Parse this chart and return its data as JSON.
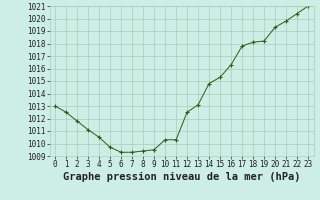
{
  "hours": [
    0,
    1,
    2,
    3,
    4,
    5,
    6,
    7,
    8,
    9,
    10,
    11,
    12,
    13,
    14,
    15,
    16,
    17,
    18,
    19,
    20,
    21,
    22,
    23
  ],
  "pressure": [
    1013.0,
    1012.5,
    1011.8,
    1011.1,
    1010.5,
    1009.7,
    1009.3,
    1009.3,
    1009.4,
    1009.5,
    1010.3,
    1010.3,
    1012.5,
    1013.1,
    1014.8,
    1015.3,
    1016.3,
    1017.8,
    1018.1,
    1018.2,
    1019.3,
    1019.8,
    1020.4,
    1021.0
  ],
  "line_color": "#2d5a1b",
  "marker_color": "#2d5a1b",
  "bg_color": "#cceee4",
  "grid_color": "#aaccbb",
  "xlabel": "Graphe pression niveau de la mer (hPa)",
  "ylim_min": 1009,
  "ylim_max": 1021,
  "ytick_step": 1,
  "xtick_labels": [
    "0",
    "1",
    "2",
    "3",
    "4",
    "5",
    "6",
    "7",
    "8",
    "9",
    "10",
    "11",
    "12",
    "13",
    "14",
    "15",
    "16",
    "17",
    "18",
    "19",
    "20",
    "21",
    "22",
    "23"
  ],
  "tick_fontsize": 5.5,
  "xlabel_fontsize": 7.5
}
